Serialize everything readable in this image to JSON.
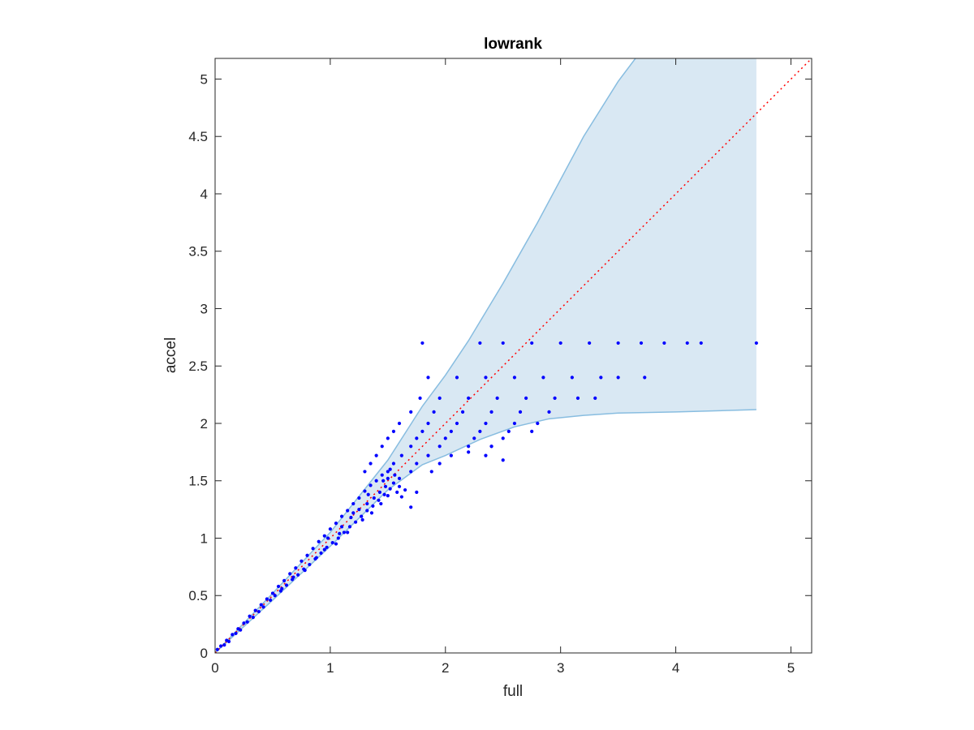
{
  "chart_data": {
    "type": "scatter",
    "title": "lowrank",
    "xlabel": "full",
    "ylabel": "accel",
    "xlim": [
      0,
      5.18
    ],
    "ylim": [
      0,
      5.18
    ],
    "xticks": [
      0,
      1,
      2,
      3,
      4,
      5
    ],
    "yticks": [
      0,
      0.5,
      1,
      1.5,
      2,
      2.5,
      3,
      3.5,
      4,
      4.5,
      5
    ],
    "xtick_labels": [
      "0",
      "1",
      "2",
      "3",
      "4",
      "5"
    ],
    "ytick_labels": [
      "0",
      "0.5",
      "1",
      "1.5",
      "2",
      "2.5",
      "3",
      "3.5",
      "4",
      "4.5",
      "5"
    ],
    "grid": false,
    "band": {
      "upper": {
        "x": [
          0,
          0.5,
          1.0,
          1.5,
          1.8,
          2.0,
          2.2,
          2.5,
          2.8,
          3.2,
          3.5,
          3.65
        ],
        "y": [
          0,
          0.52,
          1.05,
          1.68,
          2.15,
          2.42,
          2.72,
          3.22,
          3.75,
          4.5,
          4.98,
          5.18
        ]
      },
      "lower": {
        "x": [
          0,
          0.5,
          1.0,
          1.5,
          1.8,
          2.0,
          2.3,
          2.6,
          2.9,
          3.2,
          3.5,
          4.0,
          4.7
        ],
        "y": [
          0,
          0.46,
          0.93,
          1.42,
          1.64,
          1.72,
          1.86,
          1.97,
          2.04,
          2.07,
          2.09,
          2.1,
          2.12
        ]
      },
      "x_end": 4.7,
      "fill_color": "#d9e8f3",
      "edge_color": "#88bde0"
    },
    "reference_line": {
      "x": [
        0,
        5.18
      ],
      "y": [
        0,
        5.18
      ],
      "color": "#ff0000",
      "style": "dotted"
    },
    "point_color": "#0000ff",
    "rows": [
      {
        "y": 2.7,
        "x": [
          1.8,
          2.3,
          2.5,
          2.75,
          3.0,
          3.25,
          3.5,
          3.7,
          3.9,
          4.1,
          4.22,
          4.7
        ]
      },
      {
        "y": 2.4,
        "x": [
          1.85,
          2.1,
          2.35,
          2.6,
          2.85,
          3.1,
          3.35,
          3.5,
          3.73
        ]
      },
      {
        "y": 2.22,
        "x": [
          1.78,
          1.95,
          2.2,
          2.45,
          2.7,
          2.95,
          3.15,
          3.3
        ]
      },
      {
        "y": 2.1,
        "x": [
          1.7,
          1.9,
          2.15,
          2.4,
          2.65,
          2.9
        ]
      },
      {
        "y": 2.0,
        "x": [
          1.6,
          1.85,
          2.1,
          2.35,
          2.6,
          2.8
        ]
      },
      {
        "y": 1.93,
        "x": [
          1.55,
          1.8,
          2.05,
          2.3,
          2.55,
          2.75
        ]
      },
      {
        "y": 1.87,
        "x": [
          1.5,
          1.75,
          2.0,
          2.25,
          2.5
        ]
      },
      {
        "y": 1.8,
        "x": [
          1.45,
          1.7,
          1.95,
          2.2,
          2.4
        ]
      },
      {
        "y": 1.72,
        "x": [
          1.4,
          1.62,
          1.85,
          2.05,
          2.35
        ]
      },
      {
        "y": 1.65,
        "x": [
          1.35,
          1.55,
          1.75,
          1.95
        ]
      },
      {
        "y": 1.58,
        "x": [
          1.3,
          1.5,
          1.7,
          1.88
        ]
      }
    ],
    "cloud": [
      [
        0.02,
        0.03
      ],
      [
        0.05,
        0.06
      ],
      [
        0.08,
        0.07
      ],
      [
        0.1,
        0.11
      ],
      [
        0.12,
        0.1
      ],
      [
        0.15,
        0.16
      ],
      [
        0.18,
        0.17
      ],
      [
        0.2,
        0.21
      ],
      [
        0.22,
        0.2
      ],
      [
        0.25,
        0.26
      ],
      [
        0.28,
        0.27
      ],
      [
        0.3,
        0.32
      ],
      [
        0.33,
        0.31
      ],
      [
        0.35,
        0.37
      ],
      [
        0.38,
        0.36
      ],
      [
        0.4,
        0.42
      ],
      [
        0.42,
        0.4
      ],
      [
        0.45,
        0.47
      ],
      [
        0.48,
        0.46
      ],
      [
        0.5,
        0.52
      ],
      [
        0.52,
        0.5
      ],
      [
        0.55,
        0.58
      ],
      [
        0.57,
        0.54
      ],
      [
        0.6,
        0.63
      ],
      [
        0.62,
        0.59
      ],
      [
        0.65,
        0.69
      ],
      [
        0.67,
        0.64
      ],
      [
        0.7,
        0.74
      ],
      [
        0.72,
        0.68
      ],
      [
        0.75,
        0.8
      ],
      [
        0.77,
        0.73
      ],
      [
        0.8,
        0.85
      ],
      [
        0.82,
        0.77
      ],
      [
        0.85,
        0.91
      ],
      [
        0.87,
        0.82
      ],
      [
        0.9,
        0.97
      ],
      [
        0.92,
        0.87
      ],
      [
        0.95,
        1.02
      ],
      [
        0.97,
        0.92
      ],
      [
        1.0,
        1.08
      ],
      [
        1.02,
        0.96
      ],
      [
        1.05,
        1.13
      ],
      [
        1.07,
        1.0
      ],
      [
        1.1,
        1.19
      ],
      [
        1.12,
        1.05
      ],
      [
        1.15,
        1.24
      ],
      [
        1.17,
        1.1
      ],
      [
        1.2,
        1.3
      ],
      [
        1.22,
        1.14
      ],
      [
        1.25,
        1.35
      ],
      [
        1.27,
        1.19
      ],
      [
        1.3,
        1.41
      ],
      [
        1.32,
        1.24
      ],
      [
        1.35,
        1.46
      ],
      [
        1.37,
        1.28
      ],
      [
        1.4,
        1.5
      ],
      [
        1.42,
        1.33
      ],
      [
        1.45,
        1.55
      ],
      [
        1.47,
        1.38
      ],
      [
        1.5,
        1.52
      ],
      [
        1.52,
        1.43
      ],
      [
        1.55,
        1.48
      ],
      [
        1.58,
        1.4
      ],
      [
        1.6,
        1.45
      ],
      [
        1.62,
        1.36
      ],
      [
        1.65,
        1.42
      ],
      [
        1.7,
        1.27
      ],
      [
        1.75,
        1.4
      ],
      [
        1.05,
        0.95
      ],
      [
        0.95,
        0.9
      ],
      [
        1.15,
        1.05
      ],
      [
        1.2,
        1.22
      ],
      [
        0.88,
        0.83
      ],
      [
        0.78,
        0.72
      ],
      [
        1.32,
        1.3
      ],
      [
        1.38,
        1.35
      ],
      [
        1.28,
        1.16
      ],
      [
        1.48,
        1.45
      ],
      [
        1.43,
        1.4
      ],
      [
        1.52,
        1.6
      ],
      [
        1.1,
        1.1
      ],
      [
        0.68,
        0.66
      ],
      [
        0.58,
        0.56
      ],
      [
        1.25,
        1.25
      ],
      [
        1.36,
        1.22
      ],
      [
        0.98,
        1.0
      ],
      [
        1.08,
        1.04
      ],
      [
        1.18,
        1.18
      ],
      [
        1.33,
        1.38
      ],
      [
        1.44,
        1.3
      ],
      [
        1.5,
        1.37
      ],
      [
        1.56,
        1.55
      ],
      [
        1.46,
        1.5
      ],
      [
        1.6,
        1.52
      ],
      [
        2.5,
        1.68
      ],
      [
        2.2,
        1.75
      ],
      [
        2.4,
        1.8
      ]
    ]
  }
}
